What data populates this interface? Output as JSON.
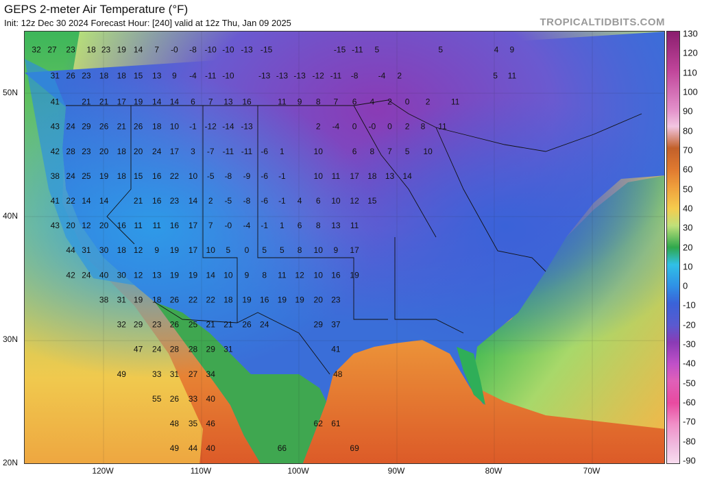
{
  "header": {
    "title": "GEPS 2-meter Air Temperature (°F)",
    "subtitle": "Init: 12z Dec 30 2024   Forecast Hour: [240]   valid at 12z Thu, Jan 09 2025",
    "watermark": "TROPICALTIDBITS.COM"
  },
  "axes": {
    "lat_labels": [
      "50N",
      "40N",
      "30N",
      "20N"
    ],
    "lon_labels": [
      "120W",
      "110W",
      "100W",
      "90W",
      "80W",
      "70W"
    ]
  },
  "colorbar": {
    "labels": [
      "130",
      "120",
      "110",
      "100",
      "90",
      "80",
      "70",
      "60",
      "50",
      "40",
      "30",
      "20",
      "10",
      "0",
      "-10",
      "-20",
      "-30",
      "-40",
      "-50",
      "-60",
      "-70",
      "-80",
      "-90"
    ]
  },
  "temperature_labels": [
    {
      "v": "32",
      "lon": -127.3,
      "lat": 53.3
    },
    {
      "v": "27",
      "lon": -125.7,
      "lat": 53.3
    },
    {
      "v": "23",
      "lon": -123.8,
      "lat": 53.3
    },
    {
      "v": "18",
      "lon": -121.7,
      "lat": 53.3
    },
    {
      "v": "23",
      "lon": -120.2,
      "lat": 53.3
    },
    {
      "v": "19",
      "lon": -118.6,
      "lat": 53.3
    },
    {
      "v": "14",
      "lon": -116.9,
      "lat": 53.3
    },
    {
      "v": "7",
      "lon": -115.0,
      "lat": 53.3
    },
    {
      "v": "-0",
      "lon": -113.2,
      "lat": 53.3
    },
    {
      "v": "-8",
      "lon": -111.3,
      "lat": 53.3
    },
    {
      "v": "-10",
      "lon": -109.5,
      "lat": 53.3
    },
    {
      "v": "-10",
      "lon": -107.7,
      "lat": 53.3
    },
    {
      "v": "-13",
      "lon": -105.8,
      "lat": 53.3
    },
    {
      "v": "-15",
      "lon": -103.8,
      "lat": 53.3
    },
    {
      "v": "-15",
      "lon": -96.3,
      "lat": 53.3
    },
    {
      "v": "-11",
      "lon": -94.5,
      "lat": 53.3
    },
    {
      "v": "5",
      "lon": -92.5,
      "lat": 53.3
    },
    {
      "v": "5",
      "lon": -86.0,
      "lat": 53.3
    },
    {
      "v": "4",
      "lon": -80.3,
      "lat": 53.3
    },
    {
      "v": "9",
      "lon": -78.7,
      "lat": 53.3
    },
    {
      "v": "31",
      "lon": -125.4,
      "lat": 51.2
    },
    {
      "v": "26",
      "lon": -123.8,
      "lat": 51.2
    },
    {
      "v": "23",
      "lon": -122.2,
      "lat": 51.2
    },
    {
      "v": "18",
      "lon": -120.4,
      "lat": 51.2
    },
    {
      "v": "18",
      "lon": -118.6,
      "lat": 51.2
    },
    {
      "v": "15",
      "lon": -116.9,
      "lat": 51.2
    },
    {
      "v": "13",
      "lon": -115.0,
      "lat": 51.2
    },
    {
      "v": "9",
      "lon": -113.2,
      "lat": 51.2
    },
    {
      "v": "-4",
      "lon": -111.3,
      "lat": 51.2
    },
    {
      "v": "-11",
      "lon": -109.5,
      "lat": 51.2
    },
    {
      "v": "-10",
      "lon": -107.7,
      "lat": 51.2
    },
    {
      "v": "-13",
      "lon": -104.0,
      "lat": 51.2
    },
    {
      "v": "-13",
      "lon": -102.2,
      "lat": 51.2
    },
    {
      "v": "-13",
      "lon": -100.4,
      "lat": 51.2
    },
    {
      "v": "-12",
      "lon": -98.5,
      "lat": 51.2
    },
    {
      "v": "-11",
      "lon": -96.7,
      "lat": 51.2
    },
    {
      "v": "-8",
      "lon": -94.8,
      "lat": 51.2
    },
    {
      "v": "-4",
      "lon": -92.0,
      "lat": 51.2
    },
    {
      "v": "2",
      "lon": -90.2,
      "lat": 51.2
    },
    {
      "v": "5",
      "lon": -80.4,
      "lat": 51.2
    },
    {
      "v": "11",
      "lon": -78.7,
      "lat": 51.2
    },
    {
      "v": "41",
      "lon": -125.4,
      "lat": 49.1
    },
    {
      "v": "21",
      "lon": -122.2,
      "lat": 49.1
    },
    {
      "v": "21",
      "lon": -120.4,
      "lat": 49.1
    },
    {
      "v": "17",
      "lon": -118.6,
      "lat": 49.1
    },
    {
      "v": "19",
      "lon": -116.9,
      "lat": 49.1
    },
    {
      "v": "14",
      "lon": -115.0,
      "lat": 49.1
    },
    {
      "v": "14",
      "lon": -113.2,
      "lat": 49.1
    },
    {
      "v": "6",
      "lon": -111.3,
      "lat": 49.1
    },
    {
      "v": "7",
      "lon": -109.5,
      "lat": 49.1
    },
    {
      "v": "13",
      "lon": -107.7,
      "lat": 49.1
    },
    {
      "v": "16",
      "lon": -105.8,
      "lat": 49.1
    },
    {
      "v": "11",
      "lon": -102.2,
      "lat": 49.1
    },
    {
      "v": "9",
      "lon": -100.4,
      "lat": 49.1
    },
    {
      "v": "8",
      "lon": -98.5,
      "lat": 49.1
    },
    {
      "v": "7",
      "lon": -96.7,
      "lat": 49.1
    },
    {
      "v": "6",
      "lon": -94.8,
      "lat": 49.1
    },
    {
      "v": "4",
      "lon": -93.0,
      "lat": 49.1
    },
    {
      "v": "2",
      "lon": -91.2,
      "lat": 49.1
    },
    {
      "v": "0",
      "lon": -89.4,
      "lat": 49.1
    },
    {
      "v": "2",
      "lon": -87.3,
      "lat": 49.1
    },
    {
      "v": "11",
      "lon": -84.5,
      "lat": 49.1
    },
    {
      "v": "43",
      "lon": -125.4,
      "lat": 47.1
    },
    {
      "v": "24",
      "lon": -123.8,
      "lat": 47.1
    },
    {
      "v": "29",
      "lon": -122.2,
      "lat": 47.1
    },
    {
      "v": "26",
      "lon": -120.4,
      "lat": 47.1
    },
    {
      "v": "21",
      "lon": -118.6,
      "lat": 47.1
    },
    {
      "v": "26",
      "lon": -116.9,
      "lat": 47.1
    },
    {
      "v": "18",
      "lon": -115.0,
      "lat": 47.1
    },
    {
      "v": "10",
      "lon": -113.2,
      "lat": 47.1
    },
    {
      "v": "-1",
      "lon": -111.3,
      "lat": 47.1
    },
    {
      "v": "-12",
      "lon": -109.5,
      "lat": 47.1
    },
    {
      "v": "-14",
      "lon": -107.7,
      "lat": 47.1
    },
    {
      "v": "-13",
      "lon": -105.8,
      "lat": 47.1
    },
    {
      "v": "2",
      "lon": -98.5,
      "lat": 47.1
    },
    {
      "v": "-4",
      "lon": -96.7,
      "lat": 47.1
    },
    {
      "v": "0",
      "lon": -94.8,
      "lat": 47.1
    },
    {
      "v": "-0",
      "lon": -93.0,
      "lat": 47.1
    },
    {
      "v": "0",
      "lon": -91.2,
      "lat": 47.1
    },
    {
      "v": "2",
      "lon": -89.4,
      "lat": 47.1
    },
    {
      "v": "8",
      "lon": -87.8,
      "lat": 47.1
    },
    {
      "v": "11",
      "lon": -85.8,
      "lat": 47.1
    },
    {
      "v": "42",
      "lon": -125.4,
      "lat": 45.1
    },
    {
      "v": "28",
      "lon": -123.8,
      "lat": 45.1
    },
    {
      "v": "23",
      "lon": -122.2,
      "lat": 45.1
    },
    {
      "v": "20",
      "lon": -120.4,
      "lat": 45.1
    },
    {
      "v": "18",
      "lon": -118.6,
      "lat": 45.1
    },
    {
      "v": "20",
      "lon": -116.9,
      "lat": 45.1
    },
    {
      "v": "24",
      "lon": -115.0,
      "lat": 45.1
    },
    {
      "v": "17",
      "lon": -113.2,
      "lat": 45.1
    },
    {
      "v": "3",
      "lon": -111.3,
      "lat": 45.1
    },
    {
      "v": "-7",
      "lon": -109.5,
      "lat": 45.1
    },
    {
      "v": "-11",
      "lon": -107.7,
      "lat": 45.1
    },
    {
      "v": "-11",
      "lon": -105.8,
      "lat": 45.1
    },
    {
      "v": "-6",
      "lon": -104.0,
      "lat": 45.1
    },
    {
      "v": "1",
      "lon": -102.2,
      "lat": 45.1
    },
    {
      "v": "10",
      "lon": -98.5,
      "lat": 45.1
    },
    {
      "v": "6",
      "lon": -94.8,
      "lat": 45.1
    },
    {
      "v": "8",
      "lon": -93.0,
      "lat": 45.1
    },
    {
      "v": "7",
      "lon": -91.2,
      "lat": 45.1
    },
    {
      "v": "5",
      "lon": -89.4,
      "lat": 45.1
    },
    {
      "v": "10",
      "lon": -87.3,
      "lat": 45.1
    },
    {
      "v": "38",
      "lon": -125.4,
      "lat": 43.1
    },
    {
      "v": "24",
      "lon": -123.8,
      "lat": 43.1
    },
    {
      "v": "25",
      "lon": -122.2,
      "lat": 43.1
    },
    {
      "v": "19",
      "lon": -120.4,
      "lat": 43.1
    },
    {
      "v": "18",
      "lon": -118.6,
      "lat": 43.1
    },
    {
      "v": "15",
      "lon": -116.9,
      "lat": 43.1
    },
    {
      "v": "16",
      "lon": -115.0,
      "lat": 43.1
    },
    {
      "v": "22",
      "lon": -113.2,
      "lat": 43.1
    },
    {
      "v": "10",
      "lon": -111.3,
      "lat": 43.1
    },
    {
      "v": "-5",
      "lon": -109.5,
      "lat": 43.1
    },
    {
      "v": "-8",
      "lon": -107.7,
      "lat": 43.1
    },
    {
      "v": "-9",
      "lon": -105.8,
      "lat": 43.1
    },
    {
      "v": "-6",
      "lon": -104.0,
      "lat": 43.1
    },
    {
      "v": "-1",
      "lon": -102.2,
      "lat": 43.1
    },
    {
      "v": "10",
      "lon": -98.5,
      "lat": 43.1
    },
    {
      "v": "11",
      "lon": -96.7,
      "lat": 43.1
    },
    {
      "v": "17",
      "lon": -94.8,
      "lat": 43.1
    },
    {
      "v": "18",
      "lon": -93.0,
      "lat": 43.1
    },
    {
      "v": "13",
      "lon": -91.2,
      "lat": 43.1
    },
    {
      "v": "14",
      "lon": -89.4,
      "lat": 43.1
    },
    {
      "v": "41",
      "lon": -125.4,
      "lat": 41.1
    },
    {
      "v": "22",
      "lon": -123.8,
      "lat": 41.1
    },
    {
      "v": "14",
      "lon": -122.2,
      "lat": 41.1
    },
    {
      "v": "14",
      "lon": -120.4,
      "lat": 41.1
    },
    {
      "v": "21",
      "lon": -116.9,
      "lat": 41.1
    },
    {
      "v": "16",
      "lon": -115.0,
      "lat": 41.1
    },
    {
      "v": "23",
      "lon": -113.2,
      "lat": 41.1
    },
    {
      "v": "14",
      "lon": -111.3,
      "lat": 41.1
    },
    {
      "v": "2",
      "lon": -109.5,
      "lat": 41.1
    },
    {
      "v": "-5",
      "lon": -107.7,
      "lat": 41.1
    },
    {
      "v": "-8",
      "lon": -105.8,
      "lat": 41.1
    },
    {
      "v": "-6",
      "lon": -104.0,
      "lat": 41.1
    },
    {
      "v": "-1",
      "lon": -102.2,
      "lat": 41.1
    },
    {
      "v": "4",
      "lon": -100.4,
      "lat": 41.1
    },
    {
      "v": "6",
      "lon": -98.5,
      "lat": 41.1
    },
    {
      "v": "10",
      "lon": -96.7,
      "lat": 41.1
    },
    {
      "v": "12",
      "lon": -94.8,
      "lat": 41.1
    },
    {
      "v": "15",
      "lon": -93.0,
      "lat": 41.1
    },
    {
      "v": "43",
      "lon": -125.4,
      "lat": 39.1
    },
    {
      "v": "20",
      "lon": -123.8,
      "lat": 39.1
    },
    {
      "v": "12",
      "lon": -122.2,
      "lat": 39.1
    },
    {
      "v": "20",
      "lon": -120.4,
      "lat": 39.1
    },
    {
      "v": "16",
      "lon": -118.6,
      "lat": 39.1
    },
    {
      "v": "11",
      "lon": -116.9,
      "lat": 39.1
    },
    {
      "v": "11",
      "lon": -115.0,
      "lat": 39.1
    },
    {
      "v": "16",
      "lon": -113.2,
      "lat": 39.1
    },
    {
      "v": "17",
      "lon": -111.3,
      "lat": 39.1
    },
    {
      "v": "7",
      "lon": -109.5,
      "lat": 39.1
    },
    {
      "v": "-0",
      "lon": -107.7,
      "lat": 39.1
    },
    {
      "v": "-4",
      "lon": -105.8,
      "lat": 39.1
    },
    {
      "v": "-1",
      "lon": -104.0,
      "lat": 39.1
    },
    {
      "v": "1",
      "lon": -102.2,
      "lat": 39.1
    },
    {
      "v": "6",
      "lon": -100.4,
      "lat": 39.1
    },
    {
      "v": "8",
      "lon": -98.5,
      "lat": 39.1
    },
    {
      "v": "13",
      "lon": -96.7,
      "lat": 39.1
    },
    {
      "v": "11",
      "lon": -94.8,
      "lat": 39.1
    },
    {
      "v": "44",
      "lon": -123.8,
      "lat": 37.1
    },
    {
      "v": "31",
      "lon": -122.2,
      "lat": 37.1
    },
    {
      "v": "30",
      "lon": -120.4,
      "lat": 37.1
    },
    {
      "v": "18",
      "lon": -118.6,
      "lat": 37.1
    },
    {
      "v": "12",
      "lon": -116.9,
      "lat": 37.1
    },
    {
      "v": "9",
      "lon": -115.0,
      "lat": 37.1
    },
    {
      "v": "19",
      "lon": -113.2,
      "lat": 37.1
    },
    {
      "v": "17",
      "lon": -111.3,
      "lat": 37.1
    },
    {
      "v": "10",
      "lon": -109.5,
      "lat": 37.1
    },
    {
      "v": "5",
      "lon": -107.7,
      "lat": 37.1
    },
    {
      "v": "0",
      "lon": -105.8,
      "lat": 37.1
    },
    {
      "v": "5",
      "lon": -104.0,
      "lat": 37.1
    },
    {
      "v": "5",
      "lon": -102.2,
      "lat": 37.1
    },
    {
      "v": "8",
      "lon": -100.4,
      "lat": 37.1
    },
    {
      "v": "10",
      "lon": -98.5,
      "lat": 37.1
    },
    {
      "v": "9",
      "lon": -96.7,
      "lat": 37.1
    },
    {
      "v": "17",
      "lon": -94.8,
      "lat": 37.1
    },
    {
      "v": "42",
      "lon": -123.8,
      "lat": 35.1
    },
    {
      "v": "24",
      "lon": -122.2,
      "lat": 35.1
    },
    {
      "v": "40",
      "lon": -120.4,
      "lat": 35.1
    },
    {
      "v": "30",
      "lon": -118.6,
      "lat": 35.1
    },
    {
      "v": "12",
      "lon": -116.9,
      "lat": 35.1
    },
    {
      "v": "13",
      "lon": -115.0,
      "lat": 35.1
    },
    {
      "v": "19",
      "lon": -113.2,
      "lat": 35.1
    },
    {
      "v": "19",
      "lon": -111.3,
      "lat": 35.1
    },
    {
      "v": "14",
      "lon": -109.5,
      "lat": 35.1
    },
    {
      "v": "10",
      "lon": -107.7,
      "lat": 35.1
    },
    {
      "v": "9",
      "lon": -105.8,
      "lat": 35.1
    },
    {
      "v": "8",
      "lon": -104.0,
      "lat": 35.1
    },
    {
      "v": "11",
      "lon": -102.2,
      "lat": 35.1
    },
    {
      "v": "12",
      "lon": -100.4,
      "lat": 35.1
    },
    {
      "v": "10",
      "lon": -98.5,
      "lat": 35.1
    },
    {
      "v": "16",
      "lon": -96.7,
      "lat": 35.1
    },
    {
      "v": "19",
      "lon": -94.8,
      "lat": 35.1
    },
    {
      "v": "38",
      "lon": -120.4,
      "lat": 33.1
    },
    {
      "v": "31",
      "lon": -118.6,
      "lat": 33.1
    },
    {
      "v": "19",
      "lon": -116.9,
      "lat": 33.1
    },
    {
      "v": "18",
      "lon": -115.0,
      "lat": 33.1
    },
    {
      "v": "26",
      "lon": -113.2,
      "lat": 33.1
    },
    {
      "v": "22",
      "lon": -111.3,
      "lat": 33.1
    },
    {
      "v": "22",
      "lon": -109.5,
      "lat": 33.1
    },
    {
      "v": "18",
      "lon": -107.7,
      "lat": 33.1
    },
    {
      "v": "19",
      "lon": -105.8,
      "lat": 33.1
    },
    {
      "v": "16",
      "lon": -104.0,
      "lat": 33.1
    },
    {
      "v": "19",
      "lon": -102.2,
      "lat": 33.1
    },
    {
      "v": "19",
      "lon": -100.4,
      "lat": 33.1
    },
    {
      "v": "20",
      "lon": -98.5,
      "lat": 33.1
    },
    {
      "v": "23",
      "lon": -96.7,
      "lat": 33.1
    },
    {
      "v": "32",
      "lon": -118.6,
      "lat": 31.1
    },
    {
      "v": "29",
      "lon": -116.9,
      "lat": 31.1
    },
    {
      "v": "23",
      "lon": -115.0,
      "lat": 31.1
    },
    {
      "v": "26",
      "lon": -113.2,
      "lat": 31.1
    },
    {
      "v": "25",
      "lon": -111.3,
      "lat": 31.1
    },
    {
      "v": "21",
      "lon": -109.5,
      "lat": 31.1
    },
    {
      "v": "21",
      "lon": -107.7,
      "lat": 31.1
    },
    {
      "v": "26",
      "lon": -105.8,
      "lat": 31.1
    },
    {
      "v": "24",
      "lon": -104.0,
      "lat": 31.1
    },
    {
      "v": "29",
      "lon": -98.5,
      "lat": 31.1
    },
    {
      "v": "37",
      "lon": -96.7,
      "lat": 31.1
    },
    {
      "v": "47",
      "lon": -116.9,
      "lat": 29.1
    },
    {
      "v": "24",
      "lon": -115.0,
      "lat": 29.1
    },
    {
      "v": "28",
      "lon": -113.2,
      "lat": 29.1
    },
    {
      "v": "28",
      "lon": -111.3,
      "lat": 29.1
    },
    {
      "v": "29",
      "lon": -109.5,
      "lat": 29.1
    },
    {
      "v": "31",
      "lon": -107.7,
      "lat": 29.1
    },
    {
      "v": "41",
      "lon": -96.7,
      "lat": 29.1
    },
    {
      "v": "49",
      "lon": -118.6,
      "lat": 27.1
    },
    {
      "v": "33",
      "lon": -115.0,
      "lat": 27.1
    },
    {
      "v": "31",
      "lon": -113.2,
      "lat": 27.1
    },
    {
      "v": "27",
      "lon": -111.3,
      "lat": 27.1
    },
    {
      "v": "34",
      "lon": -109.5,
      "lat": 27.1
    },
    {
      "v": "48",
      "lon": -96.5,
      "lat": 27.1
    },
    {
      "v": "55",
      "lon": -115.0,
      "lat": 25.1
    },
    {
      "v": "26",
      "lon": -113.2,
      "lat": 25.1
    },
    {
      "v": "33",
      "lon": -111.3,
      "lat": 25.1
    },
    {
      "v": "40",
      "lon": -109.5,
      "lat": 25.1
    },
    {
      "v": "48",
      "lon": -113.2,
      "lat": 23.1
    },
    {
      "v": "35",
      "lon": -111.3,
      "lat": 23.1
    },
    {
      "v": "46",
      "lon": -109.5,
      "lat": 23.1
    },
    {
      "v": "62",
      "lon": -98.5,
      "lat": 23.1
    },
    {
      "v": "61",
      "lon": -96.7,
      "lat": 23.1
    },
    {
      "v": "49",
      "lon": -113.2,
      "lat": 21.1
    },
    {
      "v": "44",
      "lon": -111.3,
      "lat": 21.1
    },
    {
      "v": "40",
      "lon": -109.5,
      "lat": 21.1
    },
    {
      "v": "66",
      "lon": -102.2,
      "lat": 21.1
    },
    {
      "v": "69",
      "lon": -94.8,
      "lat": 21.1
    }
  ]
}
